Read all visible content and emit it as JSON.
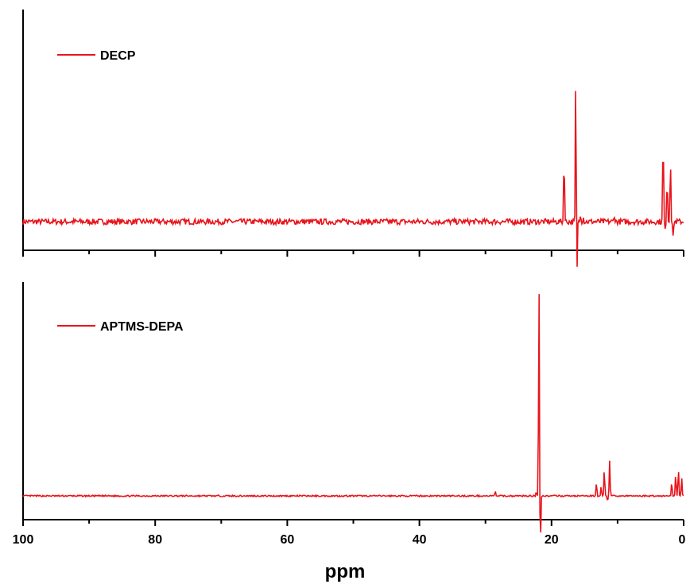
{
  "chart_data": {
    "type": "line",
    "xlabel": "ppm",
    "xlim": [
      100,
      0
    ],
    "x_reversed": true,
    "xticks": [
      100,
      80,
      60,
      40,
      20,
      0
    ],
    "series_color": "#e8141b",
    "panels": [
      {
        "name": "DECP",
        "baseline": 0.12,
        "ylim": [
          0,
          1
        ],
        "noise": 0.012,
        "peaks": [
          {
            "x": 18.1,
            "y": 0.42
          },
          {
            "x": 16.3,
            "y": 1.0
          },
          {
            "x": 16.2,
            "y": -0.35
          },
          {
            "x": 15.6,
            "y": 0.16
          },
          {
            "x": 15.2,
            "y": 0.14
          },
          {
            "x": 10.5,
            "y": 0.15
          },
          {
            "x": 3.1,
            "y": 0.5
          },
          {
            "x": 2.8,
            "y": 0.08
          },
          {
            "x": 2.5,
            "y": 0.32
          },
          {
            "x": 2.0,
            "y": 0.4
          },
          {
            "x": 1.6,
            "y": 0.05
          }
        ]
      },
      {
        "name": "APTMS-DEPA",
        "baseline": 0.1,
        "ylim": [
          0,
          1
        ],
        "noise": 0.003,
        "peaks": [
          {
            "x": 28.5,
            "y": 0.12
          },
          {
            "x": 22.3,
            "y": 0.12
          },
          {
            "x": 21.9,
            "y": 1.0
          },
          {
            "x": 21.7,
            "y": -0.14
          },
          {
            "x": 13.2,
            "y": 0.16
          },
          {
            "x": 12.5,
            "y": 0.14
          },
          {
            "x": 12.0,
            "y": 0.22
          },
          {
            "x": 11.5,
            "y": 0.08
          },
          {
            "x": 11.2,
            "y": 0.25
          },
          {
            "x": 1.8,
            "y": 0.16
          },
          {
            "x": 1.2,
            "y": 0.2
          },
          {
            "x": 0.8,
            "y": 0.22
          },
          {
            "x": 0.3,
            "y": 0.18
          }
        ]
      }
    ]
  }
}
